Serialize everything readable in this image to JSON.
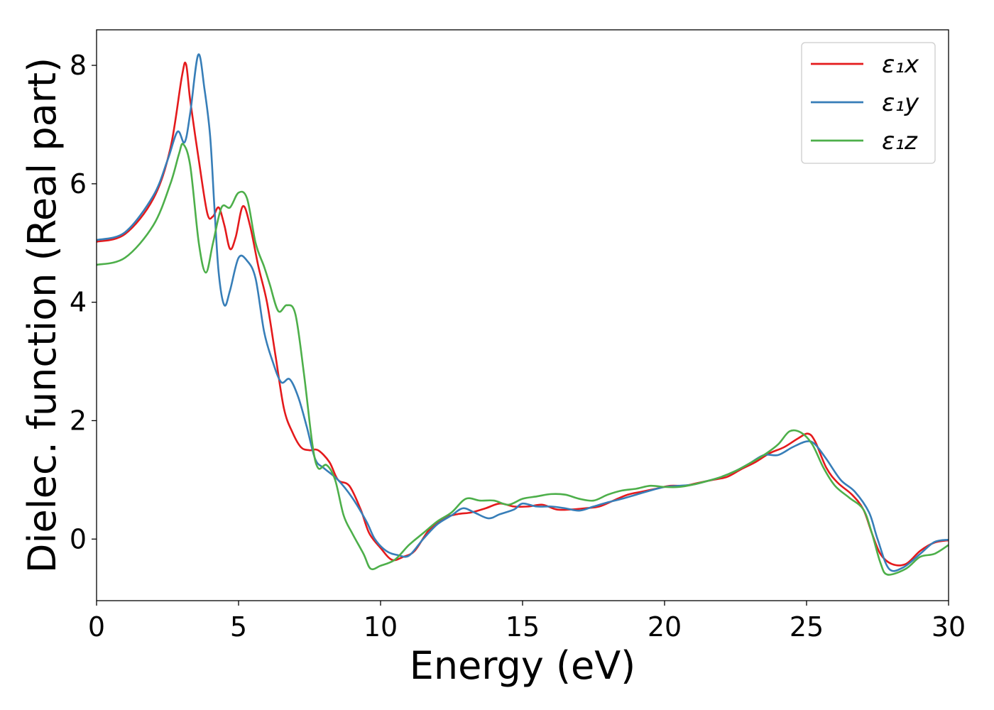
{
  "chart_data": {
    "type": "line",
    "title": "",
    "xlabel": "Energy (eV)",
    "ylabel": "Dielec. function (Real part)",
    "xlim": [
      0,
      30
    ],
    "ylim": [
      -1.04,
      8.6
    ],
    "xticks": [
      0,
      5,
      10,
      15,
      20,
      25,
      30
    ],
    "yticks": [
      0,
      2,
      4,
      6,
      8
    ],
    "grid": false,
    "legend_position": "top-right",
    "series": [
      {
        "name": "ε₁x",
        "color": "#e41a1c",
        "points": [
          [
            0,
            5.02
          ],
          [
            1,
            5.15
          ],
          [
            2,
            5.75
          ],
          [
            2.6,
            6.6
          ],
          [
            3.0,
            7.8
          ],
          [
            3.15,
            8.02
          ],
          [
            3.3,
            7.4
          ],
          [
            3.6,
            6.4
          ],
          [
            3.9,
            5.5
          ],
          [
            4.1,
            5.45
          ],
          [
            4.3,
            5.6
          ],
          [
            4.5,
            5.3
          ],
          [
            4.7,
            4.9
          ],
          [
            4.9,
            5.1
          ],
          [
            5.15,
            5.62
          ],
          [
            5.4,
            5.3
          ],
          [
            5.7,
            4.6
          ],
          [
            6.0,
            4.0
          ],
          [
            6.3,
            3.1
          ],
          [
            6.6,
            2.2
          ],
          [
            6.9,
            1.8
          ],
          [
            7.2,
            1.55
          ],
          [
            7.5,
            1.5
          ],
          [
            7.8,
            1.5
          ],
          [
            8.2,
            1.3
          ],
          [
            8.5,
            1.0
          ],
          [
            8.9,
            0.9
          ],
          [
            9.3,
            0.5
          ],
          [
            9.6,
            0.1
          ],
          [
            10.0,
            -0.15
          ],
          [
            10.4,
            -0.35
          ],
          [
            10.8,
            -0.3
          ],
          [
            11.2,
            -0.2
          ],
          [
            11.7,
            0.15
          ],
          [
            12.2,
            0.35
          ],
          [
            12.7,
            0.42
          ],
          [
            13.2,
            0.45
          ],
          [
            13.7,
            0.52
          ],
          [
            14.2,
            0.6
          ],
          [
            14.7,
            0.55
          ],
          [
            15.2,
            0.55
          ],
          [
            15.7,
            0.58
          ],
          [
            16.2,
            0.5
          ],
          [
            16.7,
            0.5
          ],
          [
            17.2,
            0.52
          ],
          [
            17.7,
            0.55
          ],
          [
            18.2,
            0.65
          ],
          [
            18.7,
            0.75
          ],
          [
            19.2,
            0.8
          ],
          [
            19.7,
            0.85
          ],
          [
            20.2,
            0.9
          ],
          [
            20.7,
            0.9
          ],
          [
            21.2,
            0.95
          ],
          [
            21.7,
            1.0
          ],
          [
            22.2,
            1.05
          ],
          [
            22.7,
            1.18
          ],
          [
            23.2,
            1.3
          ],
          [
            23.7,
            1.45
          ],
          [
            24.2,
            1.55
          ],
          [
            24.7,
            1.7
          ],
          [
            25.05,
            1.78
          ],
          [
            25.3,
            1.65
          ],
          [
            25.7,
            1.2
          ],
          [
            26.1,
            0.95
          ],
          [
            26.6,
            0.75
          ],
          [
            27.0,
            0.5
          ],
          [
            27.3,
            0.1
          ],
          [
            27.6,
            -0.25
          ],
          [
            28.0,
            -0.42
          ],
          [
            28.5,
            -0.42
          ],
          [
            29.0,
            -0.2
          ],
          [
            29.5,
            -0.06
          ],
          [
            30,
            -0.02
          ]
        ]
      },
      {
        "name": "ε₁y",
        "color": "#377eb8",
        "points": [
          [
            0,
            5.05
          ],
          [
            1,
            5.18
          ],
          [
            2,
            5.8
          ],
          [
            2.5,
            6.4
          ],
          [
            2.85,
            6.88
          ],
          [
            3.1,
            6.7
          ],
          [
            3.3,
            7.2
          ],
          [
            3.58,
            8.18
          ],
          [
            3.8,
            7.6
          ],
          [
            4.0,
            6.8
          ],
          [
            4.15,
            5.6
          ],
          [
            4.3,
            4.5
          ],
          [
            4.5,
            3.95
          ],
          [
            4.7,
            4.2
          ],
          [
            5.0,
            4.75
          ],
          [
            5.3,
            4.7
          ],
          [
            5.6,
            4.4
          ],
          [
            5.9,
            3.5
          ],
          [
            6.2,
            3.0
          ],
          [
            6.5,
            2.65
          ],
          [
            6.8,
            2.7
          ],
          [
            7.1,
            2.4
          ],
          [
            7.4,
            1.9
          ],
          [
            7.7,
            1.35
          ],
          [
            8.0,
            1.2
          ],
          [
            8.5,
            1.0
          ],
          [
            9.0,
            0.7
          ],
          [
            9.5,
            0.3
          ],
          [
            9.8,
            0.0
          ],
          [
            10.2,
            -0.2
          ],
          [
            10.6,
            -0.27
          ],
          [
            11.0,
            -0.28
          ],
          [
            11.5,
            0.0
          ],
          [
            12.0,
            0.25
          ],
          [
            12.5,
            0.4
          ],
          [
            12.9,
            0.52
          ],
          [
            13.3,
            0.45
          ],
          [
            13.8,
            0.35
          ],
          [
            14.2,
            0.42
          ],
          [
            14.7,
            0.5
          ],
          [
            15.0,
            0.6
          ],
          [
            15.5,
            0.55
          ],
          [
            16.0,
            0.55
          ],
          [
            16.5,
            0.52
          ],
          [
            17.0,
            0.48
          ],
          [
            17.5,
            0.55
          ],
          [
            18.0,
            0.62
          ],
          [
            18.5,
            0.68
          ],
          [
            19.0,
            0.75
          ],
          [
            19.5,
            0.82
          ],
          [
            20.0,
            0.88
          ],
          [
            20.5,
            0.9
          ],
          [
            21.0,
            0.92
          ],
          [
            21.5,
            0.98
          ],
          [
            22.0,
            1.05
          ],
          [
            22.5,
            1.15
          ],
          [
            23.0,
            1.28
          ],
          [
            23.5,
            1.42
          ],
          [
            24.0,
            1.42
          ],
          [
            24.5,
            1.55
          ],
          [
            25.0,
            1.65
          ],
          [
            25.3,
            1.6
          ],
          [
            25.7,
            1.35
          ],
          [
            26.2,
            1.0
          ],
          [
            26.7,
            0.8
          ],
          [
            27.2,
            0.45
          ],
          [
            27.5,
            0.0
          ],
          [
            27.9,
            -0.5
          ],
          [
            28.4,
            -0.48
          ],
          [
            29.0,
            -0.25
          ],
          [
            29.5,
            -0.05
          ],
          [
            30,
            -0.01
          ]
        ]
      },
      {
        "name": "ε₁z",
        "color": "#4daf4a",
        "points": [
          [
            0,
            4.63
          ],
          [
            1,
            4.75
          ],
          [
            2,
            5.3
          ],
          [
            2.6,
            6.0
          ],
          [
            2.9,
            6.5
          ],
          [
            3.05,
            6.67
          ],
          [
            3.3,
            6.3
          ],
          [
            3.6,
            5.0
          ],
          [
            3.85,
            4.5
          ],
          [
            4.1,
            5.0
          ],
          [
            4.4,
            5.6
          ],
          [
            4.7,
            5.6
          ],
          [
            5.0,
            5.85
          ],
          [
            5.3,
            5.75
          ],
          [
            5.6,
            5.0
          ],
          [
            5.9,
            4.6
          ],
          [
            6.1,
            4.3
          ],
          [
            6.4,
            3.85
          ],
          [
            6.7,
            3.95
          ],
          [
            7.0,
            3.8
          ],
          [
            7.3,
            2.8
          ],
          [
            7.6,
            1.6
          ],
          [
            7.8,
            1.2
          ],
          [
            8.1,
            1.25
          ],
          [
            8.4,
            1.0
          ],
          [
            8.7,
            0.4
          ],
          [
            9.0,
            0.1
          ],
          [
            9.4,
            -0.25
          ],
          [
            9.65,
            -0.5
          ],
          [
            10.0,
            -0.45
          ],
          [
            10.5,
            -0.35
          ],
          [
            11.0,
            -0.1
          ],
          [
            11.5,
            0.1
          ],
          [
            12.0,
            0.3
          ],
          [
            12.5,
            0.45
          ],
          [
            13.0,
            0.68
          ],
          [
            13.5,
            0.65
          ],
          [
            14.0,
            0.65
          ],
          [
            14.5,
            0.58
          ],
          [
            15.0,
            0.68
          ],
          [
            15.5,
            0.72
          ],
          [
            16.0,
            0.76
          ],
          [
            16.5,
            0.75
          ],
          [
            17.0,
            0.68
          ],
          [
            17.5,
            0.65
          ],
          [
            18.0,
            0.75
          ],
          [
            18.5,
            0.82
          ],
          [
            19.0,
            0.85
          ],
          [
            19.5,
            0.9
          ],
          [
            20.0,
            0.88
          ],
          [
            20.5,
            0.88
          ],
          [
            21.0,
            0.92
          ],
          [
            21.5,
            0.98
          ],
          [
            22.0,
            1.05
          ],
          [
            22.5,
            1.15
          ],
          [
            23.0,
            1.28
          ],
          [
            23.5,
            1.42
          ],
          [
            24.0,
            1.6
          ],
          [
            24.4,
            1.82
          ],
          [
            24.8,
            1.8
          ],
          [
            25.2,
            1.6
          ],
          [
            25.6,
            1.2
          ],
          [
            26.0,
            0.9
          ],
          [
            26.5,
            0.7
          ],
          [
            27.0,
            0.5
          ],
          [
            27.3,
            0.1
          ],
          [
            27.6,
            -0.4
          ],
          [
            27.85,
            -0.6
          ],
          [
            28.5,
            -0.5
          ],
          [
            29.0,
            -0.3
          ],
          [
            29.5,
            -0.25
          ],
          [
            30,
            -0.1
          ]
        ]
      }
    ]
  }
}
